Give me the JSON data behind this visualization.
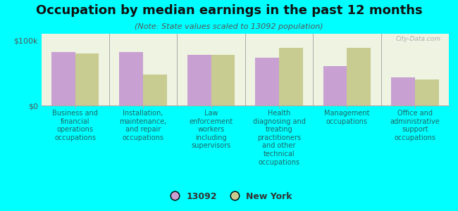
{
  "title": "Occupation by median earnings in the past 12 months",
  "subtitle": "(Note: State values scaled to 13092 population)",
  "categories": [
    "Business and\nfinancial\noperations\noccupations",
    "Installation,\nmaintenance,\nand repair\noccupations",
    "Law\nenforcement\nworkers\nincluding\nsupervisors",
    "Health\ndiagnosing and\ntreating\npractitioners\nand other\ntechnical\noccupations",
    "Management\noccupations",
    "Office and\nadministrative\nsupport\noccupations"
  ],
  "values_13092": [
    82000,
    82000,
    78000,
    73000,
    60000,
    43000
  ],
  "values_ny": [
    80000,
    47000,
    78000,
    88000,
    88000,
    40000
  ],
  "color_13092": "#c8a0d2",
  "color_ny": "#c8cc90",
  "background_color": "#00ffff",
  "ylabel_ticks": [
    0,
    100000
  ],
  "ylabel_labels": [
    "$0",
    "$100k"
  ],
  "legend_label_1": "13092",
  "legend_label_2": "New York",
  "watermark": "City-Data.com",
  "bar_width": 0.35,
  "title_fontsize": 13,
  "subtitle_fontsize": 8,
  "label_fontsize": 7,
  "legend_fontsize": 9
}
